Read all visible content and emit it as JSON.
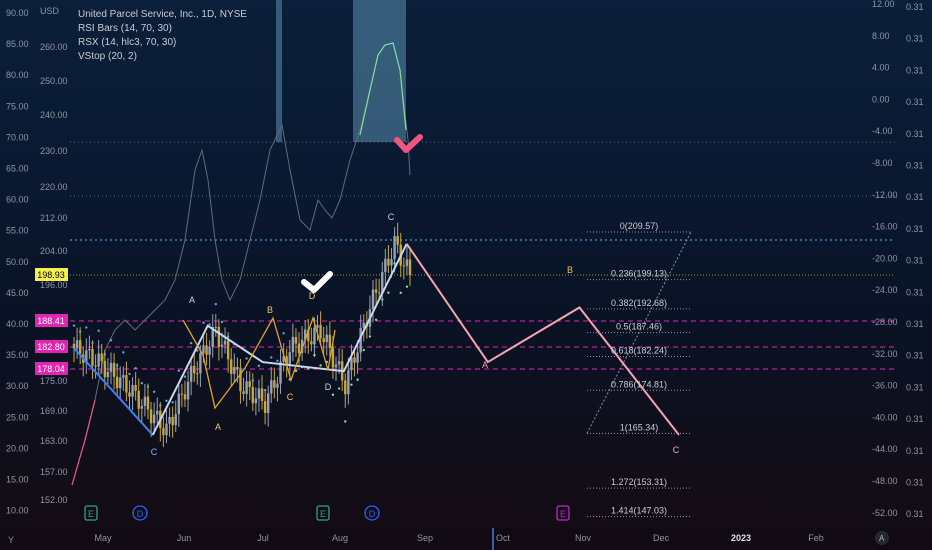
{
  "header": {
    "currency": "USD",
    "title": "United Parcel Service, Inc., 1D, NYSE",
    "indicators": [
      "RSI Bars (14, 70, 30)",
      "RSX (14, hlc3, 70, 30)",
      "VStop (20, 2)"
    ]
  },
  "colors": {
    "candle_up": "#9aa3b2",
    "candle_down": "#c7a93a",
    "rsi_line": "#5f6b7a",
    "vstop_blue": "#5ea8e0",
    "vstop_green": "#7fe0a0",
    "zigzag_blue": "#3b82f6",
    "zigzag_white": "#c8d6f0",
    "wave_yellow": "#d9a72b",
    "projection_pink": "#f5a3b5",
    "fib_line": "#8a93a6",
    "overbought_zone": "#5a8fb0",
    "check_white": "#ffffff",
    "check_pink": "#f0567e",
    "price_yellow": "#f5f050",
    "price_pink": "#e026b0"
  },
  "chart_data": {
    "type": "line",
    "x_axis_labels": [
      "May",
      "Jun",
      "Jul",
      "Aug",
      "Sep",
      "Oct",
      "Nov",
      "Dec",
      "2023",
      "Feb"
    ],
    "left_axis_outer": [
      90.0,
      85.0,
      80.0,
      75.0,
      70.0,
      65.0,
      60.0,
      55.0,
      50.0,
      45.0,
      40.0,
      35.0,
      30.0,
      25.0,
      20.0,
      15.0,
      10.0
    ],
    "price_axis_labels": [
      260.0,
      250.0,
      240.0,
      230.0,
      220.0,
      212.0,
      204.0,
      196.0,
      182.8,
      178.04,
      175.0,
      169.0,
      163.0,
      157.0,
      152.0
    ],
    "right_axis_labels": [
      12.0,
      8.0,
      4.0,
      0.0,
      -4.0,
      -8.0,
      -12.0,
      -16.0,
      -20.0,
      -24.0,
      -28.0,
      -32.0,
      -36.0,
      -40.0,
      -44.0,
      -48.0,
      -52.0
    ],
    "far_right_axis_labels": [
      0.31,
      0.31,
      0.31,
      0.31,
      0.31,
      0.31,
      0.31,
      0.31,
      0.31,
      0.31,
      0.31,
      0.31,
      0.31,
      0.31,
      0.31,
      0.31,
      0.31
    ],
    "price_tags": [
      {
        "value": 198.93,
        "color": "#f5f050",
        "text_color": "#000000"
      },
      {
        "value": 188.41,
        "color": "#e026b0",
        "text_color": "#ffffff"
      },
      {
        "value": 182.8,
        "color": "#e026b0",
        "text_color": "#ffffff"
      },
      {
        "value": 178.04,
        "color": "#e026b0",
        "text_color": "#ffffff"
      }
    ],
    "fib_levels": [
      {
        "label": "0(209.57)",
        "value": 209.57
      },
      {
        "label": "0.236(199.13)",
        "value": 199.13
      },
      {
        "label": "0.382(192.68)",
        "value": 192.68
      },
      {
        "label": "0.5(187.46)",
        "value": 187.46
      },
      {
        "label": "0.618(182.24)",
        "value": 182.24
      },
      {
        "label": "0.786(174.81)",
        "value": 174.81
      },
      {
        "label": "1(165.34)",
        "value": 165.34
      },
      {
        "label": "1.272(153.31)",
        "value": 153.31
      },
      {
        "label": "1.414(147.03)",
        "value": 147.03
      }
    ],
    "wave_labels": [
      "A",
      "B",
      "C",
      "D",
      "A",
      "B",
      "C",
      "C",
      "D",
      "A",
      "B",
      "C"
    ],
    "event_markers": [
      "E",
      "D",
      "E",
      "D",
      "E"
    ],
    "bottom_left_letter": "Y",
    "bottom_right_letter": "A",
    "zigzag_points": [
      {
        "date": "2022-04-20",
        "price": 184
      },
      {
        "date": "2022-05-20",
        "price": 165
      },
      {
        "date": "2022-06-10",
        "price": 189
      },
      {
        "date": "2022-07-01",
        "price": 181
      },
      {
        "date": "2022-08-01",
        "price": 179
      },
      {
        "date": "2022-08-25",
        "price": 207
      }
    ],
    "projection_points": [
      {
        "date": "2022-08-25",
        "price": 207
      },
      {
        "date": "2022-09-25",
        "price": 181
      },
      {
        "date": "2022-10-30",
        "price": 193
      },
      {
        "date": "2022-12-07",
        "price": 165
      }
    ]
  }
}
